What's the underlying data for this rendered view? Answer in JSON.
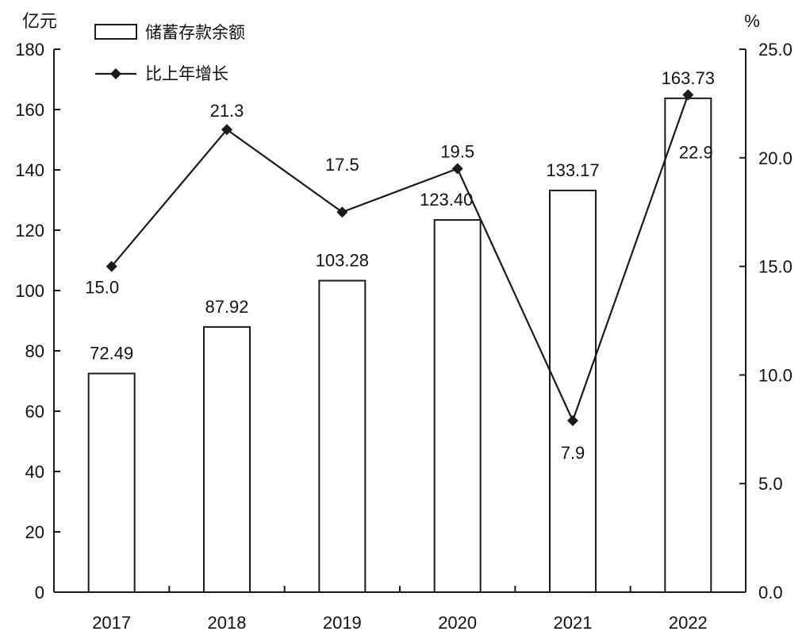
{
  "chart_data": {
    "type": "bar",
    "categories": [
      "2017",
      "2018",
      "2019",
      "2020",
      "2021",
      "2022"
    ],
    "series": [
      {
        "name": "储蓄存款余额",
        "type": "bar",
        "axis": "left",
        "values": [
          72.49,
          87.92,
          103.28,
          123.4,
          133.17,
          163.73
        ],
        "labels": [
          "72.49",
          "87.92",
          "103.28",
          "123.40",
          "133.17",
          "163.73"
        ]
      },
      {
        "name": "比上年增长",
        "type": "line",
        "axis": "right",
        "values": [
          15.0,
          21.3,
          17.5,
          19.5,
          7.9,
          22.9
        ],
        "labels": [
          "15.0",
          "21.3",
          "17.5",
          "19.5",
          "7.9",
          "22.9"
        ]
      }
    ],
    "y_left": {
      "unit": "亿元",
      "ylim": [
        0,
        180
      ],
      "ticks": [
        "0",
        "20",
        "40",
        "60",
        "80",
        "100",
        "120",
        "140",
        "160",
        "180"
      ]
    },
    "y_right": {
      "unit": "%",
      "ylim": [
        0,
        25
      ],
      "ticks": [
        "0.0",
        "5.0",
        "10.0",
        "15.0",
        "20.0",
        "25.0"
      ]
    },
    "grid": false,
    "legend": "top-left",
    "colors": {
      "bar_fill": "#ffffff",
      "stroke": "#1a1a1a"
    }
  }
}
